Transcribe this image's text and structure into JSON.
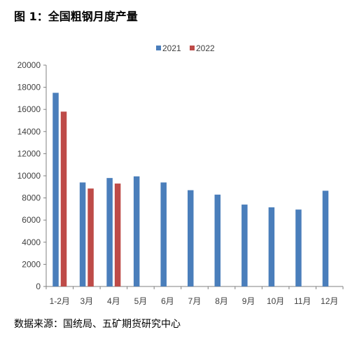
{
  "figure_title": "图 1：全国粗钢月度产量",
  "source_note": "数据来源：国统局、五矿期货研究中心",
  "chart_data": {
    "type": "bar",
    "categories": [
      "1-2月",
      "3月",
      "4月",
      "5月",
      "6月",
      "7月",
      "8月",
      "9月",
      "10月",
      "11月",
      "12月"
    ],
    "series": [
      {
        "name": "2021",
        "color": "#4a7ebb",
        "values": [
          17500,
          9400,
          9800,
          9950,
          9400,
          8700,
          8300,
          7400,
          7150,
          6950,
          8650
        ]
      },
      {
        "name": "2022",
        "color": "#be4b48",
        "values": [
          15800,
          8850,
          9300,
          null,
          null,
          null,
          null,
          null,
          null,
          null,
          null
        ]
      }
    ],
    "ylim": [
      0,
      20000
    ],
    "yticks": [
      0,
      2000,
      4000,
      6000,
      8000,
      10000,
      12000,
      14000,
      16000,
      18000,
      20000
    ],
    "grid": false,
    "legend_position": "top-center"
  }
}
